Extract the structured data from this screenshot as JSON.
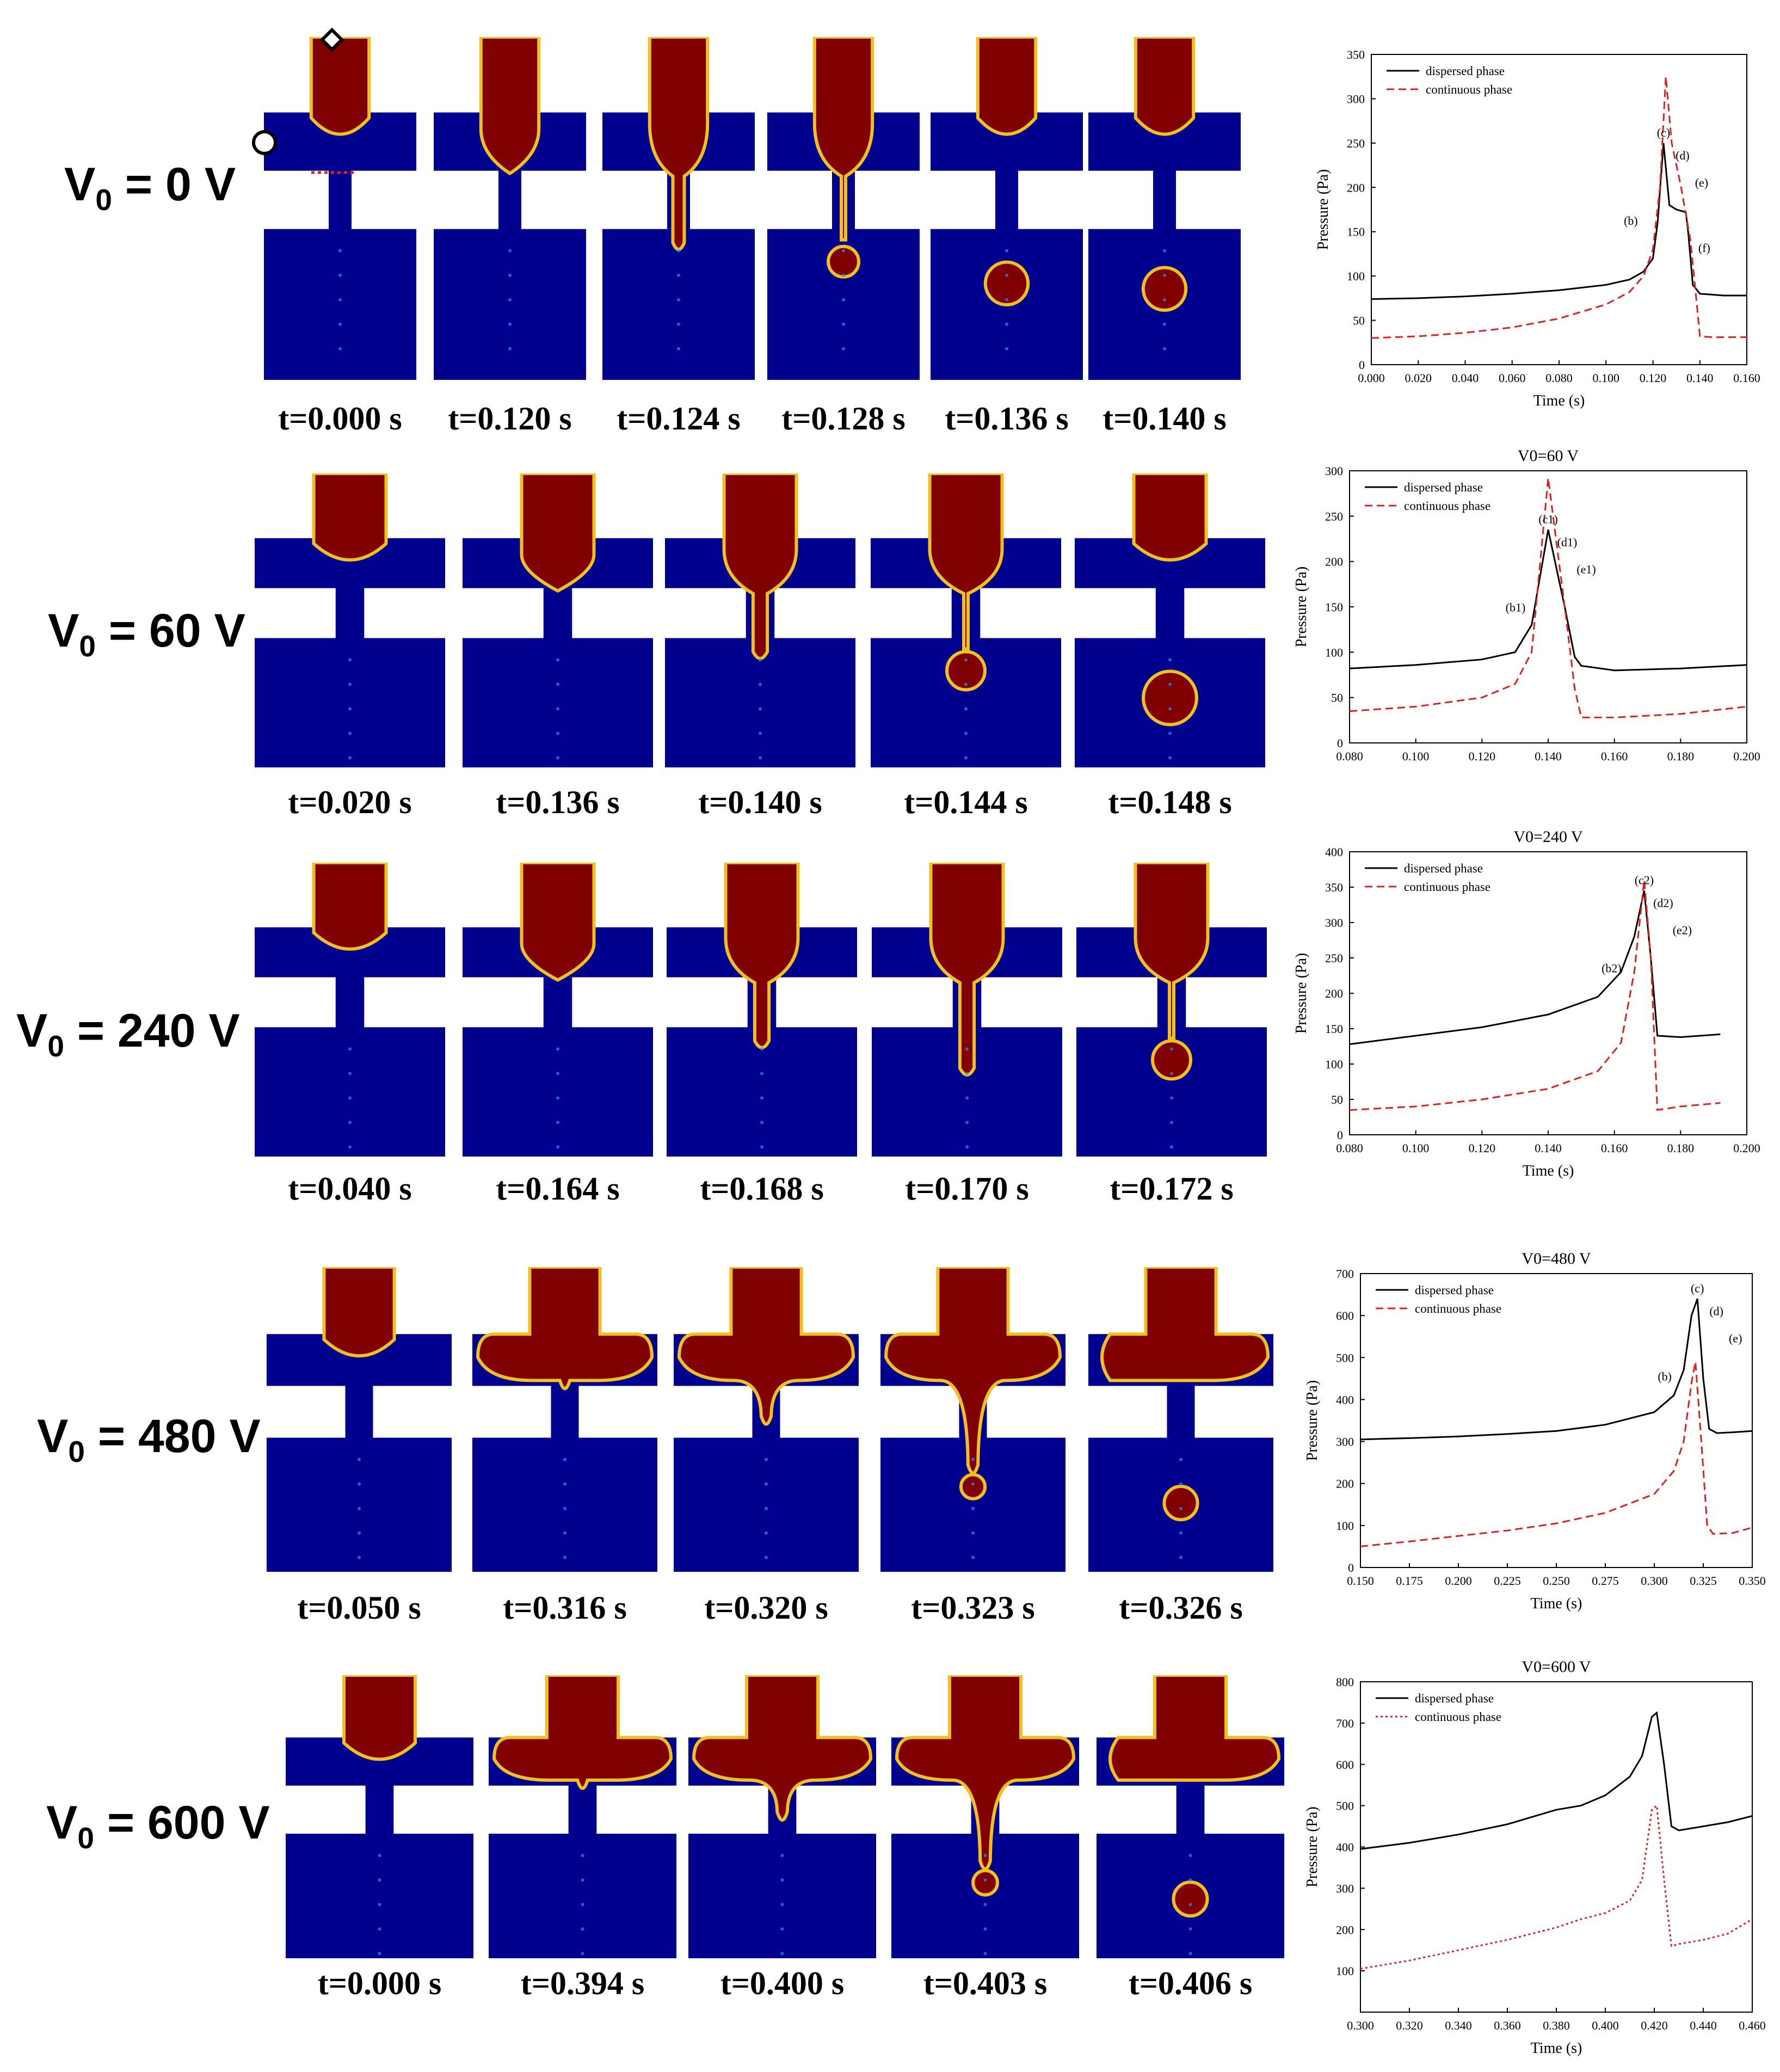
{
  "colors": {
    "continuous_phase_fill": "#00008f",
    "dispersed_phase_fill": "#800000",
    "channel_wall": "#ffffff",
    "dispersed_line": "#000000",
    "continuous_line": "#e02020"
  },
  "rows": [
    {
      "label_main": "V",
      "label_sub": "0",
      "label_tail": " = 0 V",
      "times": [
        "t=0.000 s",
        "t=0.120 s",
        "t=0.124 s",
        "t=0.128 s",
        "t=0.136 s",
        "t=0.140 s"
      ],
      "stages": [
        "rest",
        "neck",
        "finger",
        "pinch",
        "drop",
        "drop-far"
      ]
    },
    {
      "label_main": "V",
      "label_sub": "0",
      "label_tail": " = 60 V",
      "times": [
        "t=0.020 s",
        "t=0.136 s",
        "t=0.140 s",
        "t=0.144 s",
        "t=0.148 s"
      ],
      "stages": [
        "rest",
        "neck",
        "finger",
        "pinch",
        "drop-far"
      ]
    },
    {
      "label_main": "V",
      "label_sub": "0",
      "label_tail": " = 240 V",
      "times": [
        "t=0.040 s",
        "t=0.164 s",
        "t=0.168 s",
        "t=0.170 s",
        "t=0.172 s"
      ],
      "stages": [
        "rest",
        "neck",
        "finger",
        "finger-long",
        "pinch"
      ]
    },
    {
      "label_main": "V",
      "label_sub": "0",
      "label_tail": " = 480 V",
      "times": [
        "t=0.050 s",
        "t=0.316 s",
        "t=0.320 s",
        "t=0.323 s",
        "t=0.326 s"
      ],
      "stages": [
        "rest",
        "spread-neck",
        "spread-finger",
        "spread-pinch",
        "spread-drop"
      ]
    },
    {
      "label_main": "V",
      "label_sub": "0",
      "label_tail": " = 600 V",
      "times": [
        "t=0.000 s",
        "t=0.394 s",
        "t=0.400 s",
        "t=0.403 s",
        "t=0.406 s"
      ],
      "stages": [
        "rest",
        "spread-neck",
        "spread-finger",
        "spread-pinch",
        "spread-drop"
      ]
    }
  ],
  "chart_data": [
    {
      "type": "line",
      "title": "",
      "xlabel": "Time (s)",
      "ylabel": "Pressure (Pa)",
      "xlim": [
        0.0,
        0.16
      ],
      "ylim": [
        0,
        350
      ],
      "xticks": [
        "0.000",
        "0.020",
        "0.040",
        "0.060",
        "0.080",
        "0.100",
        "0.120",
        "0.140",
        "0.160"
      ],
      "yticks": [
        "0",
        "50",
        "100",
        "150",
        "200",
        "250",
        "300",
        "350"
      ],
      "legend": "top-left",
      "series": [
        {
          "name": "dispersed phase",
          "style": "solid",
          "x": [
            0.0,
            0.02,
            0.04,
            0.06,
            0.08,
            0.1,
            0.11,
            0.116,
            0.12,
            0.122,
            0.1245,
            0.127,
            0.13,
            0.134,
            0.135,
            0.137,
            0.14,
            0.145,
            0.15,
            0.16
          ],
          "y": [
            74,
            75,
            77,
            80,
            84,
            90,
            96,
            105,
            120,
            160,
            250,
            180,
            175,
            172,
            150,
            90,
            80,
            79,
            78,
            78
          ]
        },
        {
          "name": "continuous phase",
          "style": "dashed",
          "x": [
            0.0,
            0.02,
            0.04,
            0.06,
            0.08,
            0.1,
            0.11,
            0.116,
            0.12,
            0.123,
            0.1255,
            0.128,
            0.132,
            0.136,
            0.139,
            0.14,
            0.145,
            0.16
          ],
          "y": [
            30,
            32,
            36,
            42,
            52,
            68,
            82,
            100,
            130,
            200,
            325,
            250,
            200,
            140,
            60,
            32,
            31,
            31
          ]
        }
      ],
      "annotations": [
        "(b)",
        "(c)",
        "(d)",
        "(e)",
        "(f)"
      ]
    },
    {
      "type": "line",
      "title": "V0=60 V",
      "xlabel": "",
      "ylabel": "Pressure (Pa)",
      "xlim": [
        0.08,
        0.2
      ],
      "ylim": [
        0,
        300
      ],
      "xticks": [
        "0.080",
        "0.100",
        "0.120",
        "0.140",
        "0.160",
        "0.180",
        "0.200"
      ],
      "yticks": [
        "0",
        "50",
        "100",
        "150",
        "200",
        "250",
        "300"
      ],
      "legend": "top-left",
      "series": [
        {
          "name": "dispersed phase",
          "style": "solid",
          "x": [
            0.08,
            0.1,
            0.12,
            0.13,
            0.135,
            0.14,
            0.145,
            0.148,
            0.15,
            0.16,
            0.18,
            0.2
          ],
          "y": [
            82,
            86,
            92,
            100,
            130,
            235,
            150,
            95,
            85,
            80,
            82,
            86
          ]
        },
        {
          "name": "continuous phase",
          "style": "dashed",
          "x": [
            0.08,
            0.1,
            0.12,
            0.13,
            0.135,
            0.14,
            0.145,
            0.148,
            0.15,
            0.16,
            0.18,
            0.2
          ],
          "y": [
            35,
            40,
            50,
            65,
            100,
            292,
            150,
            60,
            28,
            28,
            32,
            40
          ]
        }
      ],
      "annotations": [
        "(b1)",
        "(c1)",
        "(d1)",
        "(e1)"
      ]
    },
    {
      "type": "line",
      "title": "V0=240 V",
      "xlabel": "Time (s)",
      "ylabel": "Pressure (Pa)",
      "xlim": [
        0.08,
        0.2
      ],
      "ylim": [
        0,
        400
      ],
      "xticks": [
        "0.080",
        "0.100",
        "0.120",
        "0.140",
        "0.160",
        "0.180",
        "0.200"
      ],
      "yticks": [
        "0",
        "50",
        "100",
        "150",
        "200",
        "250",
        "300",
        "350",
        "400"
      ],
      "legend": "top-left",
      "series": [
        {
          "name": "dispersed phase",
          "style": "solid",
          "x": [
            0.08,
            0.1,
            0.12,
            0.14,
            0.155,
            0.162,
            0.166,
            0.169,
            0.171,
            0.173,
            0.18,
            0.192
          ],
          "y": [
            128,
            140,
            152,
            170,
            195,
            230,
            280,
            345,
            250,
            140,
            138,
            142
          ]
        },
        {
          "name": "continuous phase",
          "style": "dashed",
          "x": [
            0.08,
            0.1,
            0.12,
            0.14,
            0.155,
            0.162,
            0.166,
            0.169,
            0.171,
            0.173,
            0.18,
            0.192
          ],
          "y": [
            35,
            40,
            50,
            65,
            90,
            130,
            230,
            360,
            250,
            35,
            40,
            45
          ]
        }
      ],
      "annotations": [
        "(b2)",
        "(c2)",
        "(d2)",
        "(e2)"
      ]
    },
    {
      "type": "line",
      "title": "V0=480 V",
      "xlabel": "Time (s)",
      "ylabel": "Pressure (Pa)",
      "xlim": [
        0.15,
        0.35
      ],
      "ylim": [
        0,
        700
      ],
      "xticks": [
        "0.150",
        "0.175",
        "0.200",
        "0.225",
        "0.250",
        "0.275",
        "0.300",
        "0.325",
        "0.350"
      ],
      "yticks": [
        "0",
        "100",
        "200",
        "300",
        "400",
        "500",
        "600",
        "700"
      ],
      "legend": "top-left",
      "series": [
        {
          "name": "dispersed phase",
          "style": "solid",
          "x": [
            0.15,
            0.175,
            0.2,
            0.225,
            0.25,
            0.275,
            0.3,
            0.31,
            0.315,
            0.319,
            0.322,
            0.325,
            0.328,
            0.332,
            0.34,
            0.35
          ],
          "y": [
            305,
            308,
            312,
            318,
            325,
            340,
            370,
            410,
            470,
            600,
            640,
            450,
            330,
            320,
            322,
            325
          ]
        },
        {
          "name": "continuous phase",
          "style": "dashed",
          "x": [
            0.15,
            0.175,
            0.2,
            0.225,
            0.25,
            0.275,
            0.3,
            0.31,
            0.315,
            0.319,
            0.321,
            0.324,
            0.327,
            0.33,
            0.34,
            0.35
          ],
          "y": [
            50,
            62,
            75,
            88,
            105,
            130,
            175,
            230,
            300,
            440,
            490,
            300,
            100,
            80,
            82,
            95
          ]
        }
      ],
      "annotations": [
        "(b)",
        "(c)",
        "(d)",
        "(e)"
      ]
    },
    {
      "type": "line",
      "title": "V0=600 V",
      "xlabel": "Time (s)",
      "ylabel": "Pressure (Pa)",
      "xlim": [
        0.3,
        0.46
      ],
      "ylim": [
        0,
        800
      ],
      "xticks": [
        "0.300",
        "0.320",
        "0.340",
        "0.360",
        "0.380",
        "0.400",
        "0.420",
        "0.440",
        "0.460"
      ],
      "yticks": [
        "100",
        "200",
        "300",
        "400",
        "500",
        "600",
        "700",
        "800"
      ],
      "legend": "top-left",
      "series": [
        {
          "name": "dispersed phase",
          "style": "solid",
          "x": [
            0.3,
            0.32,
            0.34,
            0.36,
            0.38,
            0.39,
            0.4,
            0.41,
            0.415,
            0.419,
            0.421,
            0.424,
            0.427,
            0.43,
            0.44,
            0.45,
            0.46
          ],
          "y": [
            395,
            410,
            430,
            455,
            490,
            500,
            525,
            570,
            620,
            715,
            725,
            600,
            450,
            440,
            450,
            460,
            475
          ]
        },
        {
          "name": "continuous phase",
          "style": "dotted",
          "x": [
            0.3,
            0.32,
            0.34,
            0.36,
            0.38,
            0.39,
            0.4,
            0.41,
            0.415,
            0.419,
            0.421,
            0.424,
            0.427,
            0.43,
            0.44,
            0.45,
            0.46
          ],
          "y": [
            105,
            125,
            150,
            175,
            205,
            225,
            240,
            270,
            320,
            490,
            500,
            320,
            160,
            165,
            175,
            190,
            225
          ]
        }
      ],
      "annotations": []
    }
  ]
}
